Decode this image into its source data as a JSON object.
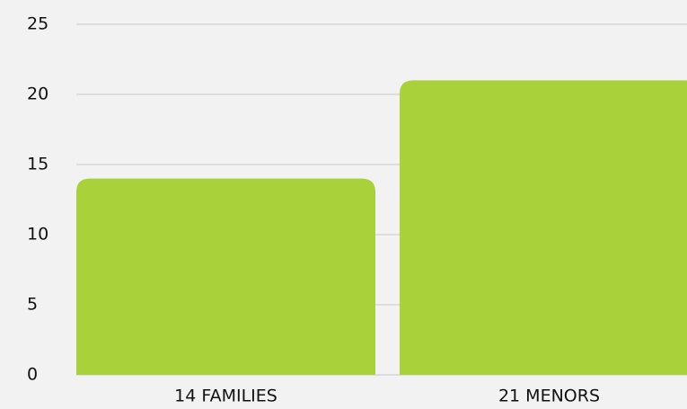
{
  "chart_data": {
    "type": "bar",
    "categories": [
      "14 FAMILIES",
      "21 MENORS"
    ],
    "values": [
      14,
      21
    ],
    "color": "#a8d13a",
    "ylim": [
      0,
      25
    ],
    "yticks": [
      0,
      5,
      10,
      15,
      20,
      25
    ],
    "grid": true
  }
}
